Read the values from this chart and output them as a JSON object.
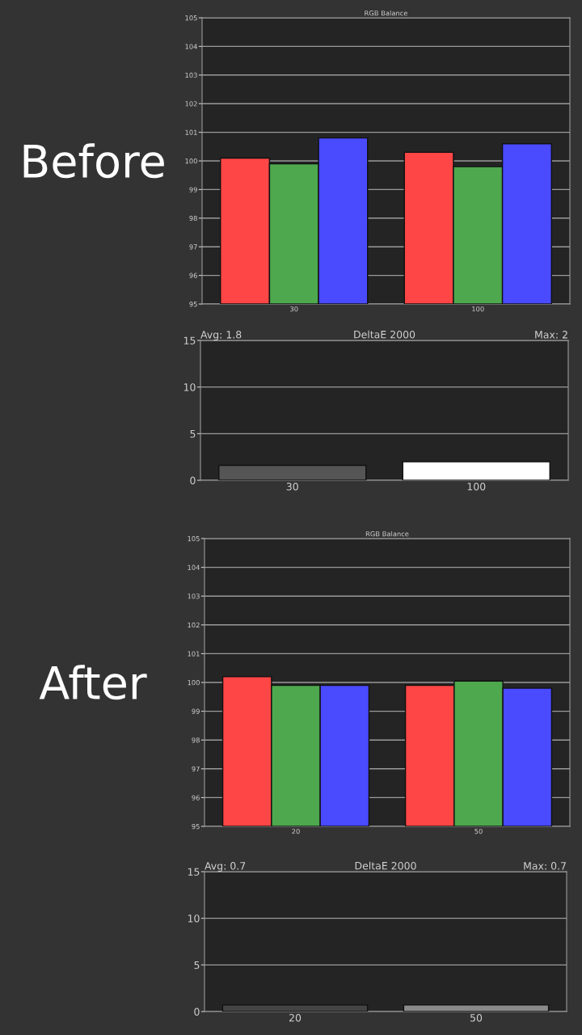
{
  "chart_data": [
    {
      "type": "bar",
      "title": "RGB Balance",
      "categories": [
        "30",
        "100"
      ],
      "series": [
        {
          "color": "#ff4646",
          "values": [
            100.1,
            100.3
          ]
        },
        {
          "color": "#4ea84e",
          "values": [
            99.9,
            99.8
          ]
        },
        {
          "color": "#4a4aff",
          "values": [
            100.8,
            100.6
          ]
        }
      ],
      "ylim": [
        95,
        105
      ],
      "yticks": [
        95,
        96,
        97,
        98,
        99,
        100,
        101,
        102,
        103,
        104,
        105
      ],
      "grid": "y",
      "annotations": [
        "Before"
      ]
    },
    {
      "type": "bar",
      "title": "DeltaE 2000",
      "categories": [
        "30",
        "100"
      ],
      "values": [
        1.6,
        2.0
      ],
      "colors": [
        "#555555",
        "#ffffff"
      ],
      "ylim": [
        0,
        15
      ],
      "yticks": [
        0,
        5,
        10,
        15
      ],
      "grid": "y",
      "annotations": [
        "Avg: 1.8",
        "Max: 2"
      ]
    },
    {
      "type": "bar",
      "title": "RGB Balance",
      "categories": [
        "20",
        "50"
      ],
      "series": [
        {
          "color": "#ff4646",
          "values": [
            100.2,
            99.9
          ]
        },
        {
          "color": "#4ea84e",
          "values": [
            99.9,
            100.05
          ]
        },
        {
          "color": "#4a4aff",
          "values": [
            99.9,
            99.8
          ]
        }
      ],
      "ylim": [
        95,
        105
      ],
      "yticks": [
        95,
        96,
        97,
        98,
        99,
        100,
        101,
        102,
        103,
        104,
        105
      ],
      "grid": "y",
      "annotations": [
        "After"
      ]
    },
    {
      "type": "bar",
      "title": "DeltaE 2000",
      "categories": [
        "20",
        "50"
      ],
      "values": [
        0.7,
        0.7
      ],
      "colors": [
        "#444444",
        "#8a8a8a"
      ],
      "ylim": [
        0,
        15
      ],
      "yticks": [
        0,
        5,
        10,
        15
      ],
      "grid": "y",
      "annotations": [
        "Avg: 0.7",
        "Max: 0.7"
      ]
    }
  ]
}
